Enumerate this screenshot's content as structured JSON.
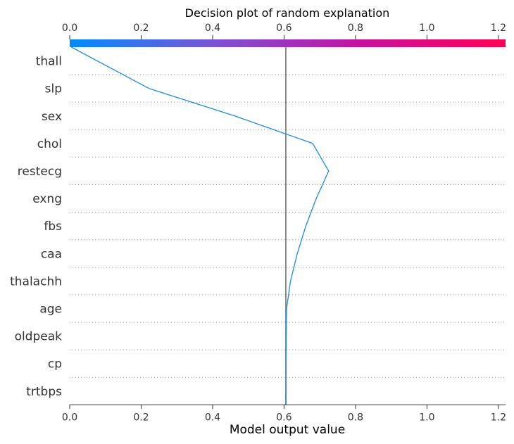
{
  "chart_data": {
    "type": "line",
    "title": "Decision plot of random explanation",
    "xlabel": "Model output value",
    "ylabel": "",
    "xlim": [
      0.0,
      1.22
    ],
    "x_ticks": [
      0.0,
      0.2,
      0.4,
      0.6,
      0.8,
      1.0,
      1.2
    ],
    "x_tick_labels": [
      "0.0",
      "0.2",
      "0.4",
      "0.6",
      "0.8",
      "1.0",
      "1.2"
    ],
    "base_value": 0.605,
    "colorbar": {
      "range": [
        0.0,
        1.22
      ],
      "colors": [
        "#008bfb",
        "#7b52d6",
        "#c5119f",
        "#ff0052"
      ]
    },
    "features": [
      "thall",
      "slp",
      "sex",
      "chol",
      "restecg",
      "exng",
      "fbs",
      "caa",
      "thalachh",
      "age",
      "oldpeak",
      "cp",
      "trtbps"
    ],
    "series": [
      {
        "color": "#1e88e5",
        "x": [
          0.605,
          0.605,
          0.605,
          0.606,
          0.607,
          0.618,
          0.637,
          0.661,
          0.69,
          0.725,
          0.68,
          0.462,
          0.222,
          0.005
        ],
        "y": [
          "base",
          "trtbps",
          "cp",
          "oldpeak",
          "age",
          "thalachh",
          "caa",
          "fbs",
          "exng",
          "restecg",
          "chol",
          "sex",
          "slp",
          "thall"
        ]
      }
    ],
    "grid": "dotted horizontal separators"
  }
}
